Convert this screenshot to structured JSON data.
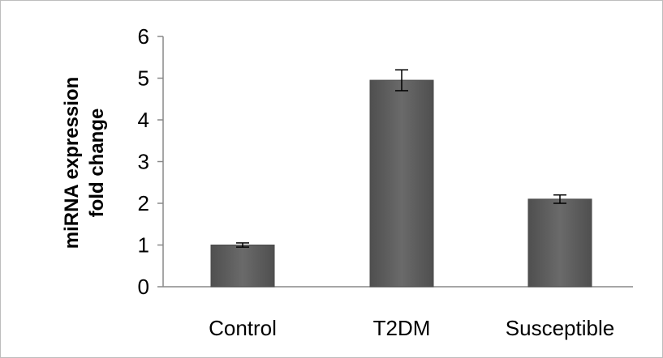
{
  "chart_data": {
    "type": "bar",
    "title": "",
    "xlabel": "",
    "ylabel_lines": [
      "miRNA expression",
      "fold change"
    ],
    "categories": [
      "Control",
      "T2DM",
      "Susceptible"
    ],
    "values": [
      1.0,
      4.95,
      2.1
    ],
    "error": [
      0.05,
      0.25,
      0.1
    ],
    "ylim": [
      0,
      6
    ],
    "yticks": [
      0,
      1,
      2,
      3,
      4,
      5,
      6
    ],
    "grid": false,
    "legend": "none",
    "bar_color": "#5f5f5f",
    "axis_color": "#888888"
  }
}
